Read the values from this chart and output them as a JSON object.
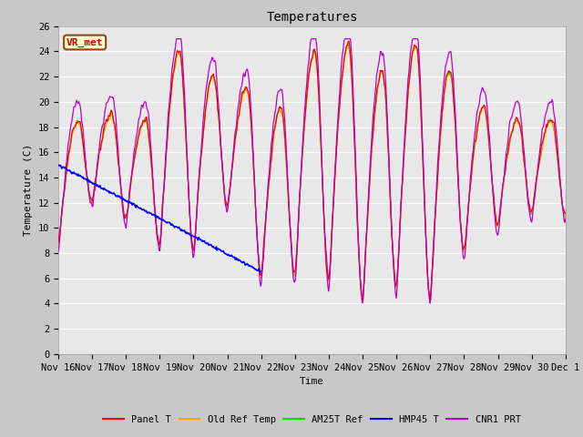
{
  "title": "Temperatures",
  "xlabel": "Time",
  "ylabel": "Temperature (C)",
  "ylim": [
    0,
    26
  ],
  "fig_bg": "#c8c8c8",
  "ax_bg": "#e8e8e8",
  "annotation_text": "VR_met",
  "annotation_facecolor": "#ffffcc",
  "annotation_edgecolor": "#8b4513",
  "series": {
    "panel_t": {
      "label": "Panel T",
      "color": "#ff0000"
    },
    "old_ref": {
      "label": "Old Ref Temp",
      "color": "#ffa500"
    },
    "am25t": {
      "label": "AM25T Ref",
      "color": "#00dd00"
    },
    "hmp45": {
      "label": "HMP45 T",
      "color": "#0000ff"
    },
    "cnr1": {
      "label": "CNR1 PRT",
      "color": "#bb00cc"
    }
  },
  "tick_labels": [
    "Nov 16",
    "Nov 17",
    "Nov 18",
    "Nov 19",
    "Nov 20",
    "Nov 21",
    "Nov 22",
    "Nov 23",
    "Nov 24",
    "Nov 25",
    "Nov 26",
    "Nov 27",
    "Nov 28",
    "Nov 29",
    "Nov 30",
    "Dec 1"
  ],
  "yticks": [
    0,
    2,
    4,
    6,
    8,
    10,
    12,
    14,
    16,
    18,
    20,
    22,
    24,
    26
  ]
}
